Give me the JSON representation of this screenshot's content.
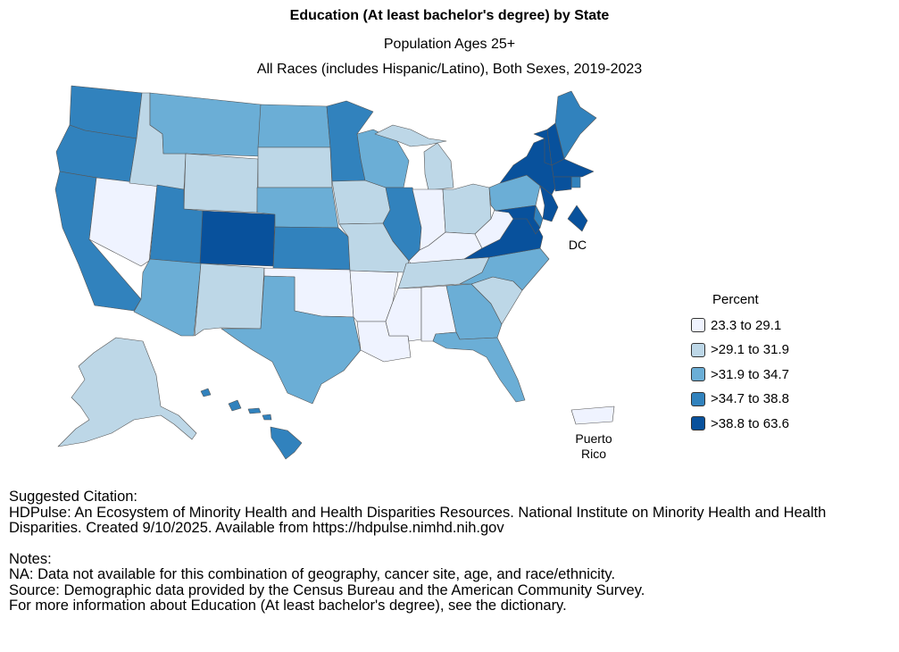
{
  "header": {
    "title": "Education (At least bachelor's degree) by State",
    "subtitle_1": "Population Ages 25+",
    "subtitle_2": "All Races (includes Hispanic/Latino), Both Sexes, 2019-2023"
  },
  "colors": {
    "c1": "#eff3ff",
    "c2": "#bdd7e7",
    "c3": "#6baed6",
    "c4": "#3182bd",
    "c5": "#08519c"
  },
  "legend": {
    "title": "Percent",
    "items": [
      {
        "label": "23.3 to 29.1",
        "color": "#eff3ff"
      },
      {
        "label": ">29.1 to 31.9",
        "color": "#bdd7e7"
      },
      {
        "label": ">31.9 to 34.7",
        "color": "#6baed6"
      },
      {
        "label": ">34.7 to 38.8",
        "color": "#3182bd"
      },
      {
        "label": ">38.8 to 63.6",
        "color": "#08519c"
      }
    ]
  },
  "map_labels": {
    "dc": "DC",
    "pr_line1": "Puerto",
    "pr_line2": "Rico"
  },
  "states": {
    "WA": "c4",
    "OR": "c4",
    "CA": "c4",
    "NV": "c1",
    "ID": "c2",
    "MT": "c3",
    "WY": "c2",
    "UT": "c4",
    "CO": "c5",
    "AZ": "c3",
    "NM": "c2",
    "ND": "c3",
    "SD": "c2",
    "NE": "c3",
    "KS": "c4",
    "OK": "c1",
    "TX": "c3",
    "MN": "c4",
    "IA": "c2",
    "MO": "c2",
    "AR": "c1",
    "LA": "c1",
    "WI": "c3",
    "IL": "c4",
    "MI": "c2",
    "IN": "c1",
    "OH": "c2",
    "KY": "c1",
    "TN": "c2",
    "MS": "c1",
    "AL": "c1",
    "GA": "c3",
    "FL": "c3",
    "SC": "c2",
    "NC": "c3",
    "VA": "c5",
    "WV": "c1",
    "PA": "c3",
    "NY": "c5",
    "VT": "c5",
    "NH": "c5",
    "ME": "c4",
    "MA": "c5",
    "RI": "c4",
    "CT": "c5",
    "NJ": "c5",
    "DE": "c4",
    "MD": "c5",
    "DC": "c5",
    "AK": "c2",
    "HI": "c4",
    "PR": "c1"
  },
  "footer": {
    "citation_heading": "Suggested Citation:",
    "citation_text": "HDPulse: An Ecosystem of Minority Health and Health Disparities Resources. National Institute on Minority Health and Health Disparities. Created 9/10/2025. Available from https://hdpulse.nimhd.nih.gov",
    "notes_heading": "Notes:",
    "note_1": "NA: Data not available for this combination of geography, cancer site, age, and race/ethnicity.",
    "note_2": "Source: Demographic data provided by the Census Bureau and the American Community Survey.",
    "note_3": "For more information about Education (At least bachelor's degree), see the dictionary."
  }
}
